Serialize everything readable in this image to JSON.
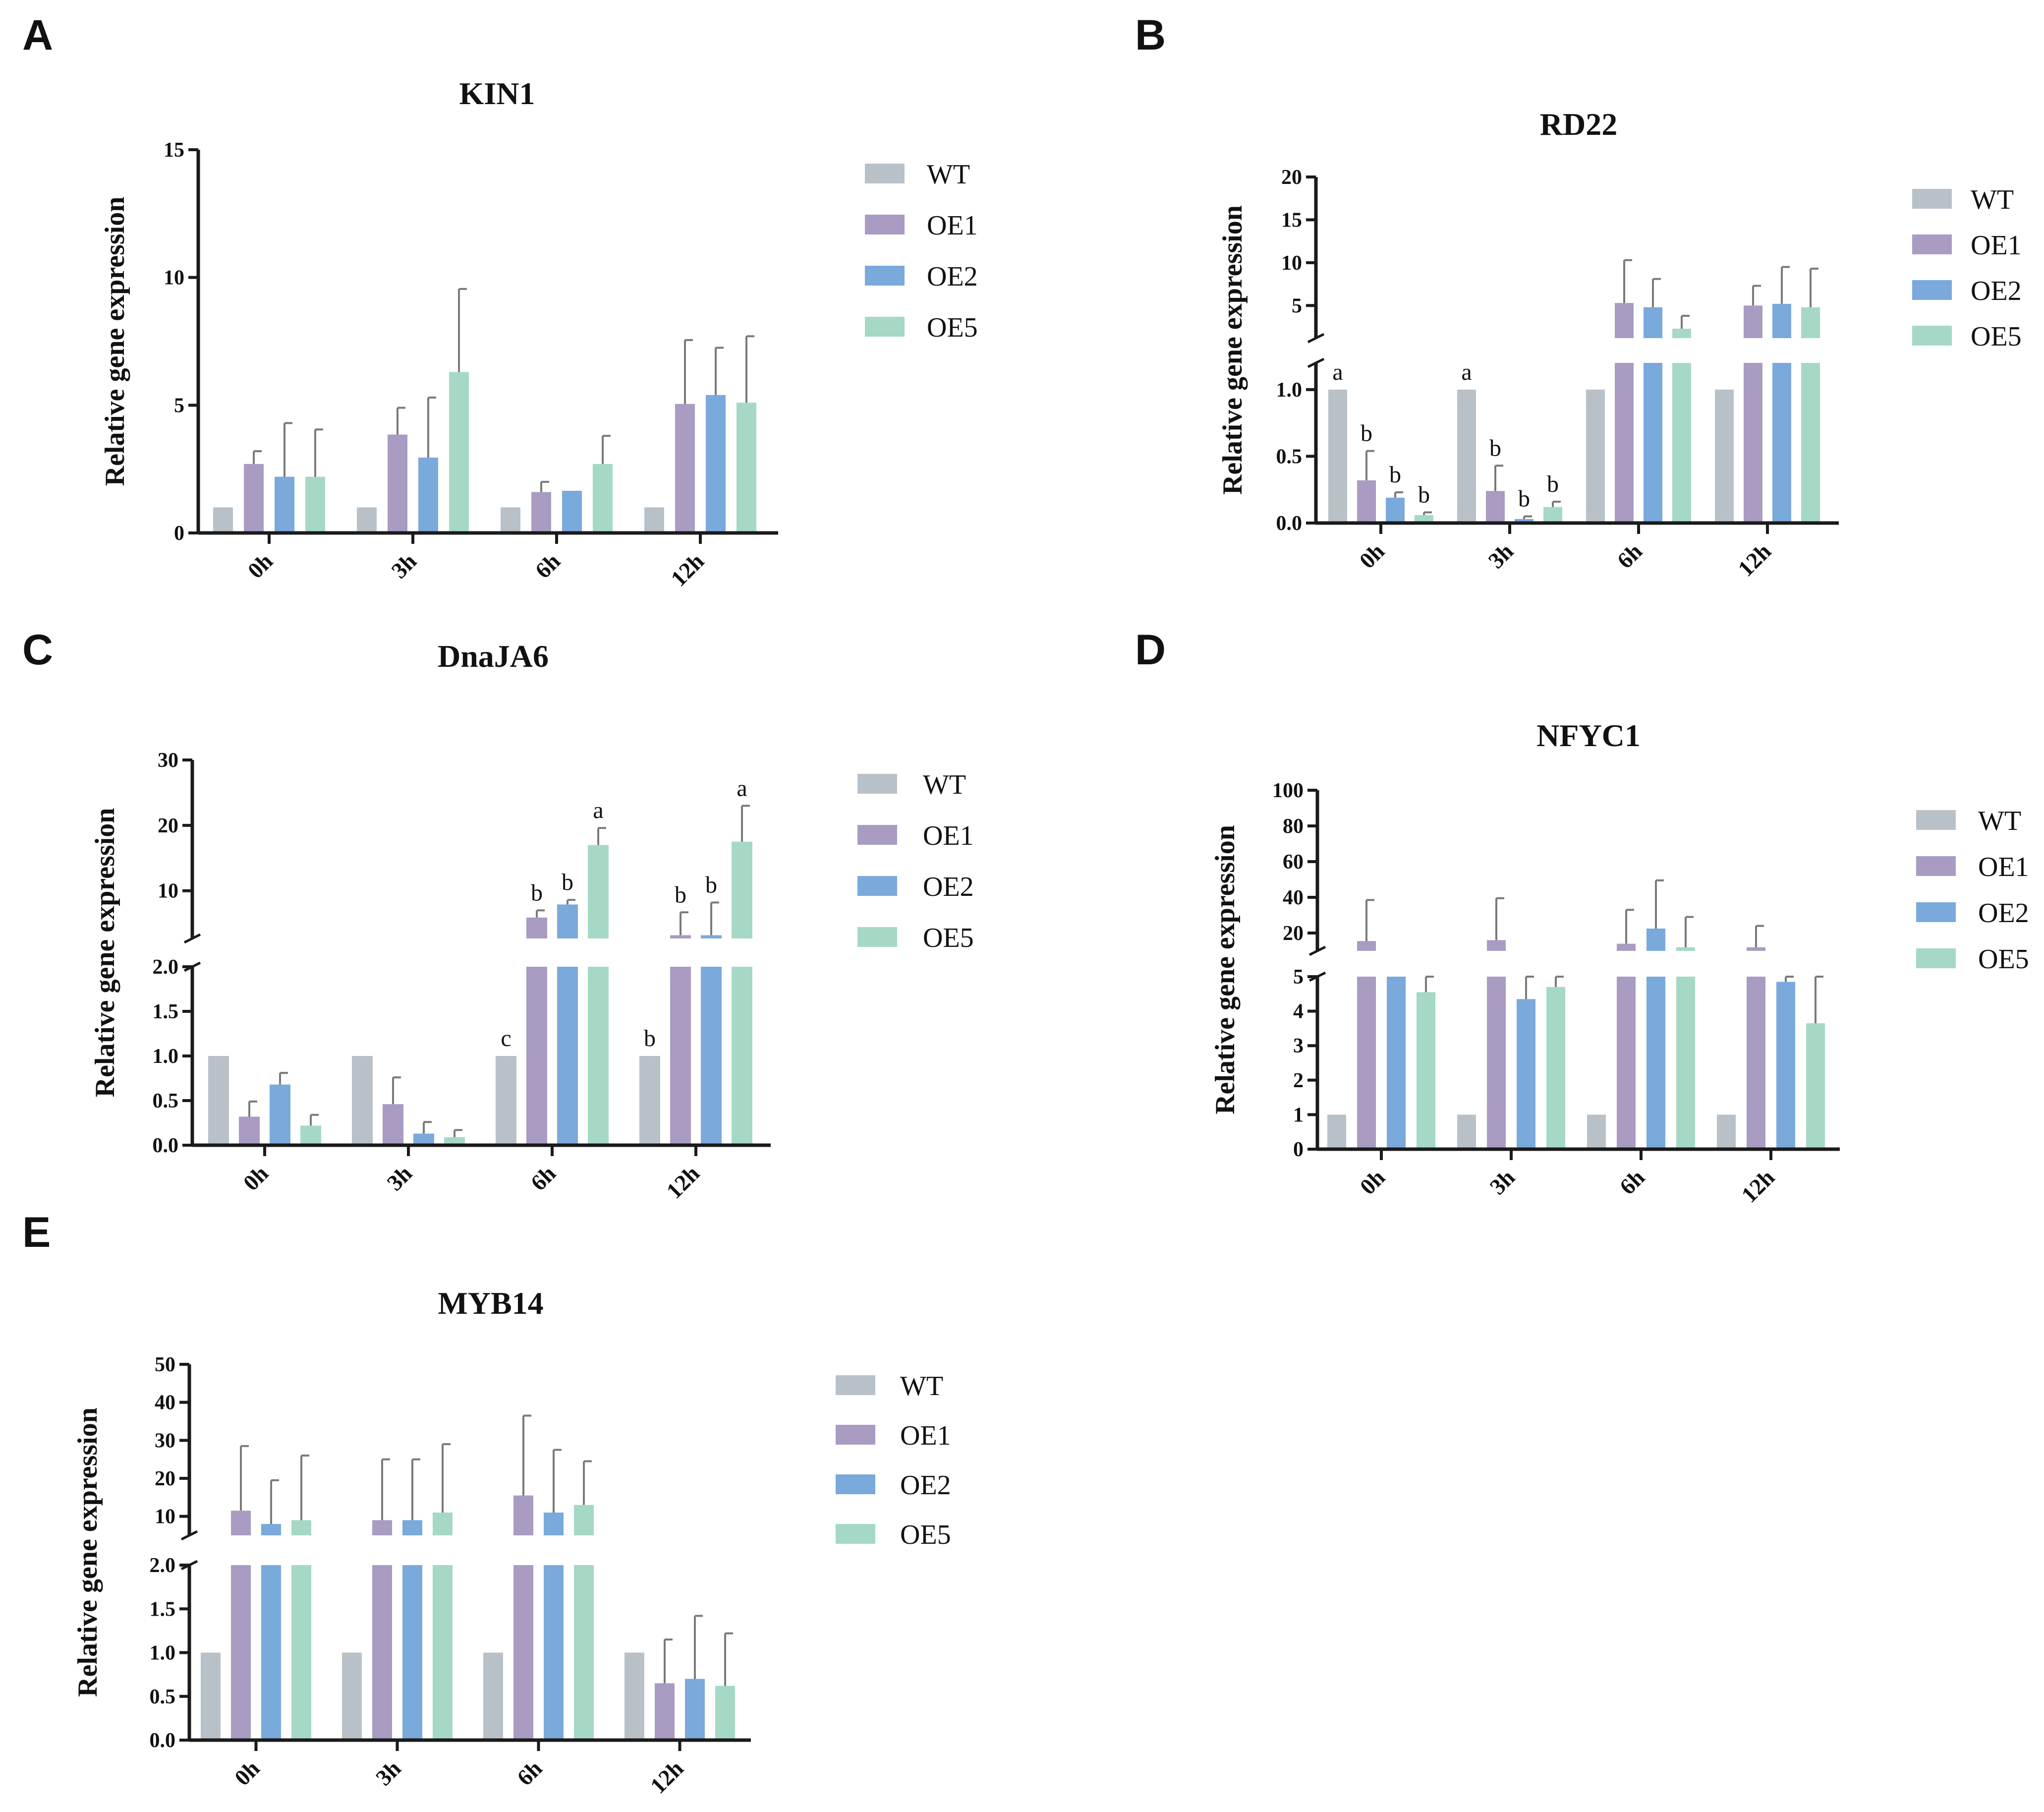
{
  "colors": {
    "WT": "#b9c1c8",
    "OE1": "#a99bc2",
    "OE2": "#7aa9dc",
    "OE5": "#a6d8c6",
    "axis": "#1a1a1a",
    "error": "#7a7a7a"
  },
  "chart_data": [
    {
      "panel": "A",
      "title": "KIN1",
      "type": "bar",
      "ylabel": "Relative gene expression",
      "xlabel": "",
      "categories": [
        "0h",
        "3h",
        "6h",
        "12h"
      ],
      "legend": [
        "WT",
        "OE1",
        "OE2",
        "OE5"
      ],
      "axis": {
        "break": false,
        "ylim": [
          0,
          15
        ],
        "ticks": [
          "0",
          "5",
          "10",
          "15"
        ]
      },
      "series": [
        {
          "name": "WT",
          "values": [
            1,
            1,
            1,
            1
          ],
          "errors": [
            0,
            0,
            0,
            0
          ]
        },
        {
          "name": "OE1",
          "values": [
            2.7,
            3.85,
            1.6,
            5.05
          ],
          "errors": [
            0.5,
            1.05,
            0.4,
            2.5
          ]
        },
        {
          "name": "OE2",
          "values": [
            2.2,
            2.95,
            1.65,
            5.4
          ],
          "errors": [
            2.1,
            2.35,
            0,
            1.85
          ]
        },
        {
          "name": "OE5",
          "values": [
            2.2,
            6.3,
            2.7,
            5.1
          ],
          "errors": [
            1.85,
            3.25,
            1.1,
            2.6
          ]
        }
      ],
      "annotations": []
    },
    {
      "panel": "B",
      "title": "RD22",
      "type": "bar",
      "ylabel": "Relative gene expression",
      "xlabel": "",
      "categories": [
        "0h",
        "3h",
        "6h",
        "12h"
      ],
      "legend": [
        "WT",
        "OE1",
        "OE2",
        "OE5"
      ],
      "axis": {
        "break": true,
        "lower": {
          "ylim": [
            0,
            1.2
          ],
          "ticks": [
            "0.0",
            "0.5",
            "1.0"
          ]
        },
        "upper": {
          "ylim": [
            1.2,
            20
          ],
          "ticks": [
            "5",
            "10",
            "15",
            "20"
          ]
        }
      },
      "series": [
        {
          "name": "WT",
          "values": [
            1,
            1,
            1,
            1
          ],
          "errors": [
            0,
            0,
            0,
            0
          ]
        },
        {
          "name": "OE1",
          "values": [
            0.32,
            0.24,
            5.3,
            5.0
          ],
          "errors": [
            0.22,
            0.19,
            5.0,
            2.3
          ]
        },
        {
          "name": "OE2",
          "values": [
            0.19,
            0.03,
            4.8,
            5.2
          ],
          "errors": [
            0.04,
            0.02,
            3.3,
            4.3
          ]
        },
        {
          "name": "OE5",
          "values": [
            0.06,
            0.12,
            2.3,
            4.8
          ],
          "errors": [
            0.02,
            0.04,
            1.5,
            4.5
          ]
        }
      ],
      "annotations": [
        {
          "group": 0,
          "series": 0,
          "text": "a"
        },
        {
          "group": 0,
          "series": 1,
          "text": "b"
        },
        {
          "group": 0,
          "series": 2,
          "text": "b"
        },
        {
          "group": 0,
          "series": 3,
          "text": "b"
        },
        {
          "group": 1,
          "series": 0,
          "text": "a"
        },
        {
          "group": 1,
          "series": 1,
          "text": "b"
        },
        {
          "group": 1,
          "series": 2,
          "text": "b"
        },
        {
          "group": 1,
          "series": 3,
          "text": "b"
        }
      ]
    },
    {
      "panel": "C",
      "title": "DnaJA6",
      "type": "bar",
      "ylabel": "Relative gene expression",
      "xlabel": "",
      "categories": [
        "0h",
        "3h",
        "6h",
        "12h"
      ],
      "legend": [
        "WT",
        "OE1",
        "OE2",
        "OE5"
      ],
      "axis": {
        "break": true,
        "lower": {
          "ylim": [
            0,
            2.0
          ],
          "ticks": [
            "0.0",
            "0.5",
            "1.0",
            "1.5",
            "2.0"
          ]
        },
        "upper": {
          "ylim": [
            2.7,
            30
          ],
          "ticks": [
            "10",
            "20",
            "30"
          ]
        }
      },
      "series": [
        {
          "name": "WT",
          "values": [
            1,
            1,
            1,
            1
          ],
          "errors": [
            0,
            0,
            0,
            0
          ]
        },
        {
          "name": "OE1",
          "values": [
            0.32,
            0.46,
            5.9,
            3.2
          ],
          "errors": [
            0.17,
            0.3,
            1.1,
            3.5
          ]
        },
        {
          "name": "OE2",
          "values": [
            0.68,
            0.13,
            7.9,
            3.2
          ],
          "errors": [
            0.13,
            0.13,
            0.7,
            5.0
          ]
        },
        {
          "name": "OE5",
          "values": [
            0.22,
            0.09,
            17.0,
            17.5
          ],
          "errors": [
            0.12,
            0.08,
            2.6,
            5.5
          ]
        }
      ],
      "annotations": [
        {
          "group": 2,
          "series": 0,
          "text": "c"
        },
        {
          "group": 2,
          "series": 1,
          "text": "b"
        },
        {
          "group": 2,
          "series": 2,
          "text": "b"
        },
        {
          "group": 2,
          "series": 3,
          "text": "a"
        },
        {
          "group": 3,
          "series": 0,
          "text": "b"
        },
        {
          "group": 3,
          "series": 1,
          "text": "b"
        },
        {
          "group": 3,
          "series": 2,
          "text": "b"
        },
        {
          "group": 3,
          "series": 3,
          "text": "a"
        }
      ]
    },
    {
      "panel": "D",
      "title": "NFYC1",
      "type": "bar",
      "ylabel": "Relative gene expression",
      "xlabel": "",
      "categories": [
        "0h",
        "3h",
        "6h",
        "12h"
      ],
      "legend": [
        "WT",
        "OE1",
        "OE2",
        "OE5"
      ],
      "axis": {
        "break": true,
        "lower": {
          "ylim": [
            0,
            5
          ],
          "ticks": [
            "0",
            "1",
            "2",
            "3",
            "4",
            "5"
          ]
        },
        "upper": {
          "ylim": [
            10,
            100
          ],
          "ticks": [
            "20",
            "40",
            "60",
            "80",
            "100"
          ]
        }
      },
      "series": [
        {
          "name": "WT",
          "values": [
            1,
            1,
            1,
            1
          ],
          "errors": [
            0,
            0,
            0,
            0
          ]
        },
        {
          "name": "OE1",
          "values": [
            15.5,
            16.0,
            14.0,
            12.0
          ],
          "errors": [
            23.0,
            23.5,
            19.0,
            12.0
          ]
        },
        {
          "name": "OE2",
          "values": [
            5.0,
            4.35,
            22.5,
            4.85
          ],
          "errors": [
            0.0,
            0.7,
            27.0,
            0.2
          ]
        },
        {
          "name": "OE5",
          "values": [
            4.55,
            4.7,
            12.0,
            3.65
          ],
          "errors": [
            0.5,
            0.3,
            17.0,
            1.4
          ]
        }
      ],
      "annotations": []
    },
    {
      "panel": "E",
      "title": "MYB14",
      "type": "bar",
      "ylabel": "Relative gene expression",
      "xlabel": "",
      "categories": [
        "0h",
        "3h",
        "6h",
        "12h"
      ],
      "legend": [
        "WT",
        "OE1",
        "OE2",
        "OE5"
      ],
      "axis": {
        "break": true,
        "lower": {
          "ylim": [
            0,
            2.0
          ],
          "ticks": [
            "0.0",
            "0.5",
            "1.0",
            "1.5",
            "2.0"
          ]
        },
        "upper": {
          "ylim": [
            5,
            50
          ],
          "ticks": [
            "10",
            "20",
            "30",
            "40",
            "50"
          ]
        }
      },
      "series": [
        {
          "name": "WT",
          "values": [
            1,
            1,
            1,
            1
          ],
          "errors": [
            0,
            0,
            0,
            0
          ]
        },
        {
          "name": "OE1",
          "values": [
            11.5,
            9.0,
            15.5,
            0.65
          ],
          "errors": [
            17.0,
            16.0,
            21.0,
            0.5
          ]
        },
        {
          "name": "OE2",
          "values": [
            8.0,
            9.0,
            11.0,
            0.7
          ],
          "errors": [
            11.5,
            16.0,
            16.5,
            0.72
          ]
        },
        {
          "name": "OE5",
          "values": [
            9.0,
            11.0,
            13.0,
            0.62
          ],
          "errors": [
            17.0,
            18.0,
            11.5,
            0.6
          ]
        }
      ],
      "annotations": []
    }
  ]
}
